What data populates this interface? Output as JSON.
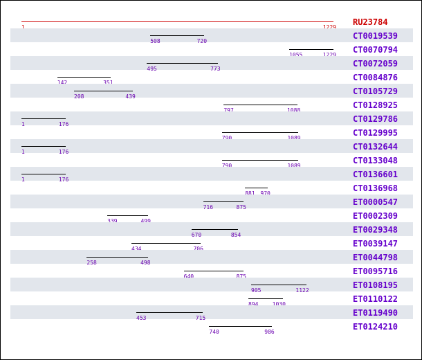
{
  "scale": {
    "min": 1,
    "max": 1229
  },
  "colors": {
    "reference": "#cc0000",
    "subject": "#000000",
    "number": "#6a00b0",
    "label": "#6600cc",
    "band": "#e2e6ec"
  },
  "reference": {
    "id": "RU23784",
    "start": "1",
    "end": "1229"
  },
  "alignments": [
    {
      "id": "CT0019539",
      "start": "508",
      "end": "720"
    },
    {
      "id": "CT0070794",
      "start": "1055",
      "end": "1229"
    },
    {
      "id": "CT0072059",
      "start": "495",
      "end": "773"
    },
    {
      "id": "CT0084876",
      "start": "142",
      "end": "351"
    },
    {
      "id": "CT0105729",
      "start": "208",
      "end": "439"
    },
    {
      "id": "CT0128925",
      "start": "797",
      "end": "1088"
    },
    {
      "id": "CT0129786",
      "start": "1",
      "end": "176"
    },
    {
      "id": "CT0129995",
      "start": "790",
      "end": "1089"
    },
    {
      "id": "CT0132644",
      "start": "1",
      "end": "176"
    },
    {
      "id": "CT0133048",
      "start": "790",
      "end": "1089"
    },
    {
      "id": "CT0136601",
      "start": "1",
      "end": "176"
    },
    {
      "id": "CT0136968",
      "start": "881",
      "end": "970"
    },
    {
      "id": "ET0000547",
      "start": "716",
      "end": "875"
    },
    {
      "id": "ET0002309",
      "start": "339",
      "end": "499"
    },
    {
      "id": "ET0029348",
      "start": "670",
      "end": "854"
    },
    {
      "id": "ET0039147",
      "start": "434",
      "end": "706"
    },
    {
      "id": "ET0044798",
      "start": "258",
      "end": "498"
    },
    {
      "id": "ET0095716",
      "start": "640",
      "end": "875"
    },
    {
      "id": "ET0108195",
      "start": "905",
      "end": "1122"
    },
    {
      "id": "ET0110122",
      "start": "894",
      "end": "1030"
    },
    {
      "id": "ET0119490",
      "start": "453",
      "end": "715"
    },
    {
      "id": "ET0124210",
      "start": "740",
      "end": "986"
    }
  ]
}
